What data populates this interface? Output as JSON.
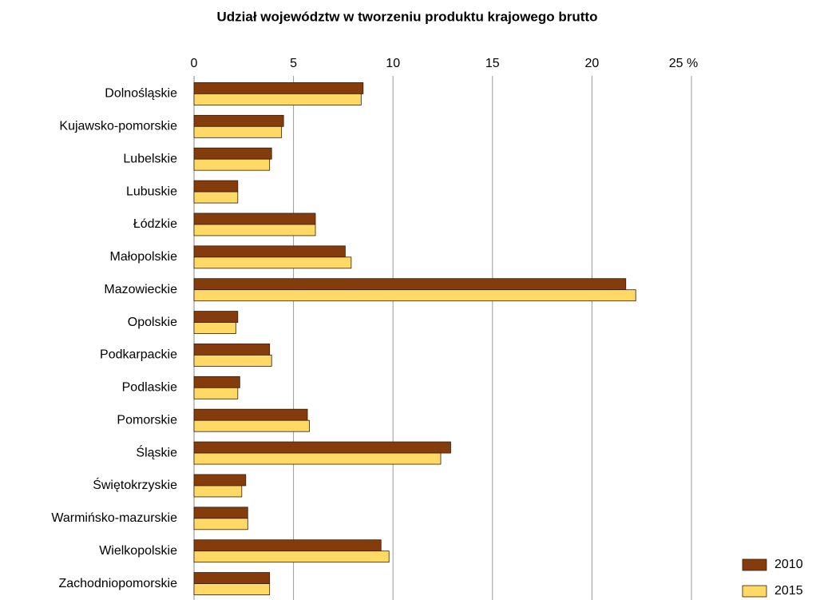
{
  "chart_data": {
    "type": "hbar",
    "title": "Udział województw w tworzeniu produktu krajowego brutto",
    "categories": [
      "Dolnośląskie",
      "Kujawsko-pomorskie",
      "Lubelskie",
      "Lubuskie",
      "Łódzkie",
      "Małopolskie",
      "Mazowieckie",
      "Opolskie",
      "Podkarpackie",
      "Podlaskie",
      "Pomorskie",
      "Śląskie",
      "Świętokrzyskie",
      "Warmińsko-mazurskie",
      "Wielkopolskie",
      "Zachodniopomorskie"
    ],
    "series": [
      {
        "name": "2010",
        "color": "#843c0c",
        "values": [
          8.5,
          4.5,
          3.9,
          2.2,
          6.1,
          7.6,
          21.7,
          2.2,
          3.8,
          2.3,
          5.7,
          12.9,
          2.6,
          2.7,
          9.4,
          3.8
        ]
      },
      {
        "name": "2015",
        "color": "#ffd966",
        "values": [
          8.4,
          4.4,
          3.8,
          2.2,
          6.1,
          7.9,
          22.2,
          2.1,
          3.9,
          2.2,
          5.8,
          12.4,
          2.4,
          2.7,
          9.8,
          3.8
        ]
      }
    ],
    "xlim": [
      0,
      25
    ],
    "xticks": [
      0,
      5,
      10,
      15,
      20,
      {
        "value": 25,
        "label": "25 %"
      }
    ],
    "grid": true,
    "legend": "bottom-right"
  }
}
